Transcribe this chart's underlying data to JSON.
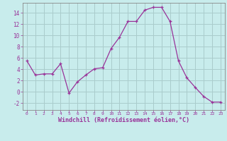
{
  "x": [
    0,
    1,
    2,
    3,
    4,
    5,
    6,
    7,
    8,
    9,
    10,
    11,
    12,
    13,
    14,
    15,
    16,
    17,
    18,
    19,
    20,
    21,
    22,
    23
  ],
  "y": [
    5.5,
    3.0,
    3.2,
    3.2,
    5.0,
    -0.2,
    1.8,
    3.0,
    4.1,
    4.3,
    7.7,
    9.7,
    12.5,
    12.5,
    14.5,
    15.0,
    15.0,
    12.5,
    5.5,
    2.5,
    0.8,
    -0.8,
    -1.8,
    -1.8
  ],
  "line_color": "#993399",
  "marker": "+",
  "bg_color": "#c8ecec",
  "grid_color": "#aacccc",
  "xlabel": "Windchill (Refroidissement éolien,°C)",
  "xlabel_color": "#993399",
  "tick_color": "#993399",
  "spine_color": "#888888",
  "ylim": [
    -3.2,
    15.8
  ],
  "xlim": [
    -0.5,
    23.5
  ],
  "yticks": [
    -2,
    0,
    2,
    4,
    6,
    8,
    10,
    12,
    14
  ],
  "xticks": [
    0,
    1,
    2,
    3,
    4,
    5,
    6,
    7,
    8,
    9,
    10,
    11,
    12,
    13,
    14,
    15,
    16,
    17,
    18,
    19,
    20,
    21,
    22,
    23
  ],
  "font_family": "monospace"
}
